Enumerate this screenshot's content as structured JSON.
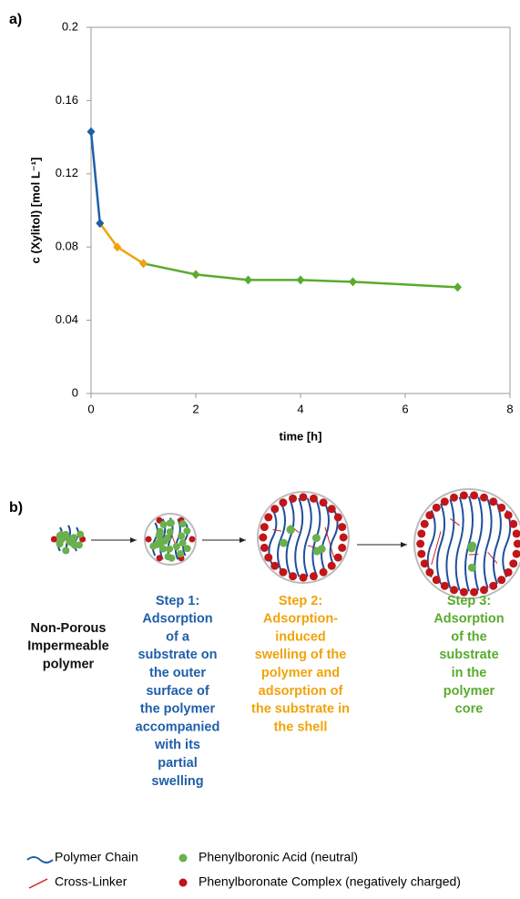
{
  "chart_data": {
    "type": "line",
    "panel_label": "a)",
    "ylabel": "c (Xylitol) [mol L⁻¹]",
    "xlabel": "time [h]",
    "xlim": [
      0,
      8
    ],
    "xticks": [
      0,
      2,
      4,
      6,
      8
    ],
    "ylim": [
      0,
      0.2
    ],
    "yticks": [
      0,
      0.04,
      0.08,
      0.12,
      0.16,
      0.2
    ],
    "series": [
      {
        "color": "#1f5fa8",
        "x": [
          0,
          0.17
        ],
        "values": [
          0.143,
          0.093
        ]
      },
      {
        "color": "#f0a30a",
        "x": [
          0.17,
          0.5,
          1
        ],
        "values": [
          0.093,
          0.08,
          0.071
        ]
      },
      {
        "color": "#5aab2e",
        "x": [
          1,
          2,
          3,
          4,
          5,
          7
        ],
        "values": [
          0.071,
          0.065,
          0.062,
          0.062,
          0.061,
          0.058
        ]
      }
    ]
  },
  "diagram": {
    "label": "b)",
    "captions": [
      {
        "color": "#111111",
        "lines": [
          "Non-Porous",
          "Impermeable",
          "polymer"
        ]
      },
      {
        "color": "#1f5fa8",
        "lines": [
          "Step 1:",
          "Adsorption",
          "of a",
          "substrate on",
          "the outer",
          "surface of",
          "the polymer",
          "accompanied",
          "with its",
          "partial",
          "swelling"
        ]
      },
      {
        "color": "#f0a30a",
        "lines": [
          "Step 2:",
          "Adsorption-",
          "induced",
          "swelling of the",
          "polymer and",
          "adsorption of",
          "the substrate in",
          "the shell"
        ]
      },
      {
        "color": "#5aab2e",
        "lines": [
          "Step 3:",
          "Adsorption",
          "of the",
          "substrate",
          "in the",
          "polymer",
          "core"
        ]
      }
    ],
    "legend": [
      "Polymer Chain",
      "Phenylboronic Acid (neutral)",
      "Cross-Linker",
      "Phenylboronate Complex (negatively charged)"
    ]
  }
}
